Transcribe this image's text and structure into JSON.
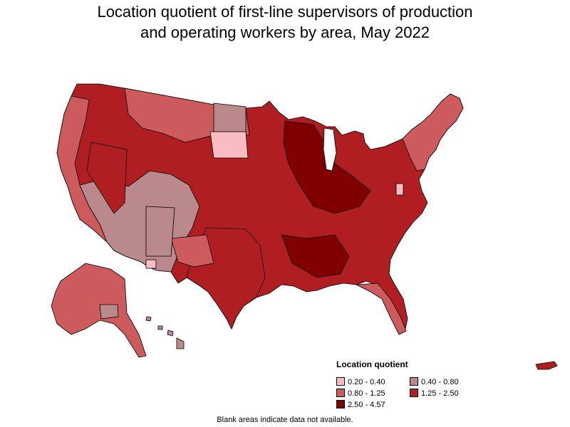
{
  "title_line1": "Location quotient of first-line supervisors of production",
  "title_line2": "and operating workers by area, May 2022",
  "legend": {
    "title": "Location quotient",
    "items": [
      {
        "label": "0.20 - 0.40",
        "color": "#f8bcc2"
      },
      {
        "label": "0.40 - 0.80",
        "color": "#b9898c"
      },
      {
        "label": "0.80 - 1.25",
        "color": "#cd5a5c"
      },
      {
        "label": "1.25 - 2.50",
        "color": "#b01e22"
      },
      {
        "label": "2.50 - 4.57",
        "color": "#800000"
      }
    ]
  },
  "footnote": "Blank areas indicate data not available.",
  "colors": {
    "border": "#000000",
    "water": "#ffffff"
  }
}
